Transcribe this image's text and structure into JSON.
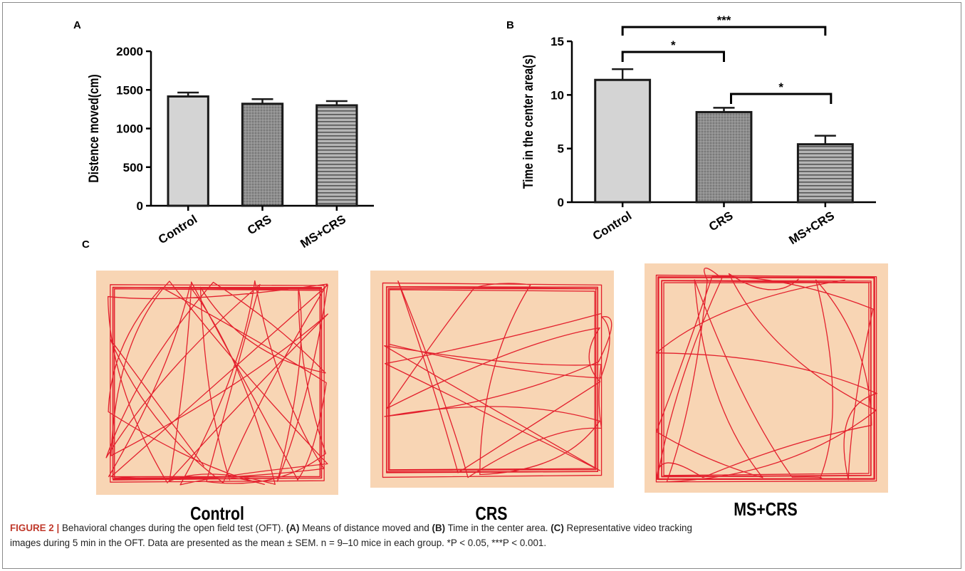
{
  "panels": {
    "a": "A",
    "b": "B",
    "c": "C"
  },
  "chart_data": [
    {
      "type": "bar",
      "panel": "A",
      "categories": [
        "Control",
        "CRS",
        "MS+CRS"
      ],
      "values": [
        1415,
        1320,
        1300
      ],
      "errors": [
        50,
        60,
        55
      ],
      "ylabel": "Distence moved(cm)",
      "ylim": [
        0,
        2000
      ],
      "yticks": [
        0,
        500,
        1000,
        1500,
        2000
      ],
      "fills": [
        "#d4d4d4",
        "#8e8e8e",
        "#a5a5a5"
      ],
      "patterns": [
        "none",
        "dots",
        "horizontal-lines"
      ],
      "grid": false
    },
    {
      "type": "bar",
      "panel": "B",
      "categories": [
        "Control",
        "CRS",
        "MS+CRS"
      ],
      "values": [
        11.4,
        8.4,
        5.4
      ],
      "errors": [
        1.0,
        0.4,
        0.8
      ],
      "ylabel": "Time in the center area(s)",
      "ylim": [
        0,
        15
      ],
      "yticks": [
        0,
        5,
        10,
        15
      ],
      "fills": [
        "#d4d4d4",
        "#8e8e8e",
        "#a5a5a5"
      ],
      "patterns": [
        "none",
        "dots",
        "horizontal-lines"
      ],
      "grid": false,
      "significance": [
        {
          "from": 0,
          "to": 2,
          "label": "***"
        },
        {
          "from": 0,
          "to": 1,
          "label": "*"
        },
        {
          "from": 1,
          "to": 2,
          "label": "*"
        }
      ]
    }
  ],
  "tracking": {
    "colors": {
      "arena": "#f8d5b4",
      "track": "#e3202d"
    },
    "items": [
      {
        "label": "Control"
      },
      {
        "label": "CRS"
      },
      {
        "label": "MS+CRS"
      }
    ]
  },
  "caption": {
    "figure_label": "FIGURE 2 |",
    "text_1": " Behavioral changes during the open field test (OFT). ",
    "a_label": "(A)",
    "text_2": " Means of distance moved and ",
    "b_label": "(B)",
    "text_3": " Time in the center area. ",
    "c_label": "(C)",
    "text_4": " Representative video tracking",
    "line_2": "images during 5 min in the OFT. Data are presented as the mean ± SEM. n = 9–10 mice in each group. *P < 0.05, ***P < 0.001."
  }
}
